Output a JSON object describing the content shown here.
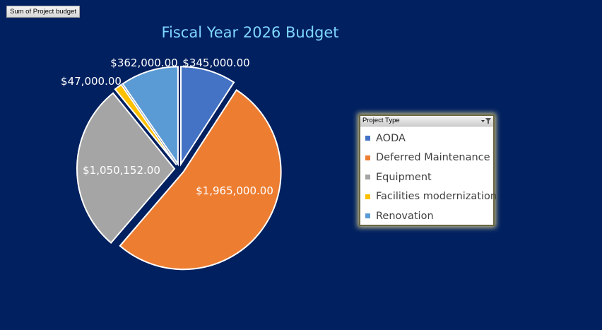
{
  "field_button": {
    "label": "Sum of Project budget"
  },
  "legend": {
    "header": "Project Type"
  },
  "chart_data": {
    "type": "pie",
    "title": "Fiscal Year 2026 Budget",
    "slices": [
      {
        "label": "AODA",
        "value": 345000,
        "data_label": "$345,000.00",
        "color": "#4472C4"
      },
      {
        "label": "Deferred Maintenance",
        "value": 1965000,
        "data_label": "$1,965,000.00",
        "color": "#ED7D31"
      },
      {
        "label": "Equipment",
        "value": 1050152,
        "data_label": "$1,050,152.00",
        "color": "#A5A5A5"
      },
      {
        "label": "Facilities modernization",
        "value": 47000,
        "data_label": "$47,000.00",
        "color": "#FFC000"
      },
      {
        "label": "Renovation",
        "value": 362000,
        "data_label": "$362,000.00",
        "color": "#5B9BD5"
      }
    ],
    "exploded": true,
    "legend_position": "right"
  }
}
